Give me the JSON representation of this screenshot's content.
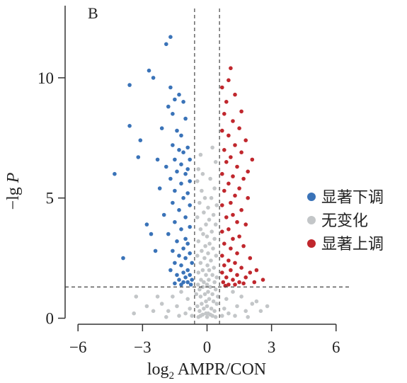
{
  "chart_data": {
    "type": "scatter",
    "panel_label": "B",
    "xlabel_prefix": "log",
    "xlabel_sub": "2",
    "xlabel_rest": " AMPR/CON",
    "ylabel_prefix": "−lg ",
    "ylabel_var": "P",
    "xlim": [
      -6.6,
      6.6
    ],
    "ylim": [
      -0.25,
      13.0
    ],
    "xticks": [
      -6,
      -3,
      0,
      3,
      6
    ],
    "xtick_labels": [
      "−6",
      "−3",
      "0",
      "3",
      "6"
    ],
    "yticks": [
      0,
      5,
      10
    ],
    "ytick_labels": [
      "0",
      "5",
      "10"
    ],
    "thresholds": {
      "fold_change_x": [
        -0.58,
        0.58
      ],
      "p_y": 1.3
    },
    "legend_position": "right",
    "series": [
      {
        "name": "显著下调",
        "color": "#3a73b8",
        "points": [
          [
            -1.7,
            11.7
          ],
          [
            -1.9,
            11.4
          ],
          [
            -2.7,
            10.3
          ],
          [
            -2.5,
            10.0
          ],
          [
            -3.6,
            9.7
          ],
          [
            -1.7,
            9.6
          ],
          [
            -1.3,
            9.3
          ],
          [
            -1.5,
            9.1
          ],
          [
            -1.1,
            9.0
          ],
          [
            -1.8,
            8.8
          ],
          [
            -1.6,
            8.5
          ],
          [
            -1.0,
            8.3
          ],
          [
            -3.6,
            8.0
          ],
          [
            -2.1,
            7.9
          ],
          [
            -1.4,
            7.8
          ],
          [
            -1.2,
            7.6
          ],
          [
            -3.1,
            7.4
          ],
          [
            -1.6,
            7.2
          ],
          [
            -0.9,
            7.1
          ],
          [
            -1.3,
            7.0
          ],
          [
            -1.1,
            6.9
          ],
          [
            -3.2,
            6.7
          ],
          [
            -2.3,
            6.6
          ],
          [
            -1.5,
            6.6
          ],
          [
            -0.8,
            6.6
          ],
          [
            -1.2,
            6.4
          ],
          [
            -1.9,
            6.3
          ],
          [
            -0.9,
            6.2
          ],
          [
            -1.4,
            6.1
          ],
          [
            -4.3,
            6.0
          ],
          [
            -1.0,
            6.0
          ],
          [
            -1.7,
            5.8
          ],
          [
            -0.8,
            5.7
          ],
          [
            -1.2,
            5.6
          ],
          [
            -2.2,
            5.4
          ],
          [
            -1.5,
            5.3
          ],
          [
            -0.9,
            5.2
          ],
          [
            -1.1,
            5.0
          ],
          [
            -1.6,
            4.8
          ],
          [
            -0.8,
            4.7
          ],
          [
            -1.3,
            4.5
          ],
          [
            -2.0,
            4.3
          ],
          [
            -1.0,
            4.2
          ],
          [
            -1.5,
            4.0
          ],
          [
            -2.8,
            3.9
          ],
          [
            -0.8,
            3.8
          ],
          [
            -1.2,
            3.7
          ],
          [
            -1.8,
            3.5
          ],
          [
            -1.0,
            3.3
          ],
          [
            -2.6,
            3.5
          ],
          [
            -1.4,
            3.2
          ],
          [
            -0.9,
            3.1
          ],
          [
            -1.1,
            2.9
          ],
          [
            -1.6,
            2.8
          ],
          [
            -0.8,
            2.7
          ],
          [
            -1.3,
            2.6
          ],
          [
            -2.4,
            2.8
          ],
          [
            -3.9,
            2.5
          ],
          [
            -1.0,
            2.5
          ],
          [
            -1.5,
            2.3
          ],
          [
            -0.7,
            2.3
          ],
          [
            -1.2,
            2.2
          ],
          [
            -0.9,
            2.0
          ],
          [
            -1.7,
            2.0
          ],
          [
            -1.1,
            1.9
          ],
          [
            -0.8,
            1.8
          ],
          [
            -1.4,
            1.8
          ],
          [
            -1.0,
            1.7
          ],
          [
            -0.7,
            1.6
          ],
          [
            -1.3,
            1.6
          ],
          [
            -0.9,
            1.5
          ],
          [
            -1.1,
            1.5
          ],
          [
            -0.75,
            1.4
          ],
          [
            -1.5,
            1.45
          ],
          [
            -1.2,
            1.4
          ]
        ]
      },
      {
        "name": "无变化",
        "color": "#c3c6c8",
        "points": [
          [
            -0.3,
            6.8
          ],
          [
            -0.4,
            6.2
          ],
          [
            -0.2,
            6.0
          ],
          [
            -0.45,
            5.7
          ],
          [
            0.25,
            7.1
          ],
          [
            0.4,
            6.5
          ],
          [
            0.15,
            5.8
          ],
          [
            0.35,
            5.4
          ],
          [
            -0.25,
            5.3
          ],
          [
            -0.1,
            5.0
          ],
          [
            0.2,
            5.0
          ],
          [
            -0.35,
            4.8
          ],
          [
            0.45,
            4.7
          ],
          [
            0.05,
            4.6
          ],
          [
            -0.15,
            4.4
          ],
          [
            0.3,
            4.3
          ],
          [
            -0.45,
            4.2
          ],
          [
            0.1,
            4.1
          ],
          [
            -0.05,
            3.9
          ],
          [
            0.4,
            3.9
          ],
          [
            -0.3,
            3.7
          ],
          [
            0.22,
            3.6
          ],
          [
            -0.18,
            3.5
          ],
          [
            0.0,
            3.4
          ],
          [
            0.35,
            3.3
          ],
          [
            -0.4,
            3.2
          ],
          [
            0.12,
            3.1
          ],
          [
            -0.08,
            3.0
          ],
          [
            0.28,
            2.9
          ],
          [
            -0.25,
            2.8
          ],
          [
            0.05,
            2.7
          ],
          [
            -0.45,
            2.6
          ],
          [
            0.42,
            2.6
          ],
          [
            -0.12,
            2.5
          ],
          [
            0.18,
            2.4
          ],
          [
            -0.3,
            2.3
          ],
          [
            0.02,
            2.2
          ],
          [
            0.32,
            2.1
          ],
          [
            -0.2,
            2.0
          ],
          [
            0.1,
            2.0
          ],
          [
            -0.4,
            1.9
          ],
          [
            0.25,
            1.8
          ],
          [
            -0.05,
            1.8
          ],
          [
            0.45,
            1.7
          ],
          [
            -0.28,
            1.6
          ],
          [
            0.08,
            1.6
          ],
          [
            -0.15,
            1.5
          ],
          [
            0.35,
            1.5
          ],
          [
            0.0,
            1.4
          ],
          [
            -0.42,
            1.4
          ],
          [
            -0.2,
            1.3
          ],
          [
            0.15,
            1.3
          ],
          [
            0.4,
            1.2
          ],
          [
            -0.35,
            1.2
          ],
          [
            0.05,
            1.1
          ],
          [
            -0.1,
            1.0
          ],
          [
            0.25,
            1.0
          ],
          [
            -0.5,
            1.0
          ],
          [
            0.5,
            0.9
          ],
          [
            -0.3,
            0.9
          ],
          [
            0.1,
            0.8
          ],
          [
            -0.05,
            0.7
          ],
          [
            0.3,
            0.7
          ],
          [
            -0.25,
            0.6
          ],
          [
            0.45,
            0.6
          ],
          [
            0.0,
            0.5
          ],
          [
            -0.45,
            0.5
          ],
          [
            0.2,
            0.4
          ],
          [
            -0.15,
            0.4
          ],
          [
            0.35,
            0.3
          ],
          [
            -0.35,
            0.3
          ],
          [
            0.05,
            0.2
          ],
          [
            -0.05,
            0.2
          ],
          [
            0.15,
            0.15
          ],
          [
            -0.2,
            0.15
          ],
          [
            0.25,
            0.1
          ],
          [
            -0.3,
            0.1
          ],
          [
            0.0,
            0.05
          ],
          [
            0.4,
            0.05
          ],
          [
            -0.4,
            0.05
          ],
          [
            -1.2,
            1.1
          ],
          [
            -1.6,
            0.9
          ],
          [
            -0.9,
            0.8
          ],
          [
            -2.1,
            0.6
          ],
          [
            -1.4,
            0.5
          ],
          [
            -0.8,
            0.4
          ],
          [
            -1.8,
            0.3
          ],
          [
            -1.0,
            0.2
          ],
          [
            -2.5,
            0.3
          ],
          [
            -1.3,
            0.1
          ],
          [
            -3.4,
            0.2
          ],
          [
            -1.9,
            0.05
          ],
          [
            -0.7,
            0.1
          ],
          [
            1.2,
            1.1
          ],
          [
            1.6,
            0.9
          ],
          [
            0.9,
            0.8
          ],
          [
            2.1,
            0.6
          ],
          [
            1.4,
            0.5
          ],
          [
            0.8,
            0.4
          ],
          [
            1.8,
            0.3
          ],
          [
            1.0,
            0.2
          ],
          [
            2.5,
            0.3
          ],
          [
            1.3,
            0.1
          ],
          [
            2.8,
            0.5
          ],
          [
            1.9,
            0.05
          ],
          [
            0.7,
            0.1
          ],
          [
            2.3,
            0.7
          ],
          [
            -2.8,
            0.5
          ],
          [
            -2.3,
            0.9
          ],
          [
            -3.3,
            0.9
          ]
        ]
      },
      {
        "name": "显著上调",
        "color": "#c0272d",
        "points": [
          [
            1.1,
            10.4
          ],
          [
            1.0,
            9.9
          ],
          [
            0.7,
            9.6
          ],
          [
            1.3,
            9.3
          ],
          [
            0.9,
            9.0
          ],
          [
            1.6,
            8.6
          ],
          [
            0.8,
            8.5
          ],
          [
            1.2,
            8.2
          ],
          [
            1.5,
            7.9
          ],
          [
            0.7,
            7.8
          ],
          [
            1.0,
            7.6
          ],
          [
            1.8,
            7.4
          ],
          [
            1.3,
            7.2
          ],
          [
            0.8,
            7.0
          ],
          [
            1.6,
            6.9
          ],
          [
            1.1,
            6.7
          ],
          [
            2.1,
            6.6
          ],
          [
            0.9,
            6.5
          ],
          [
            1.4,
            6.3
          ],
          [
            1.9,
            6.1
          ],
          [
            0.7,
            6.0
          ],
          [
            1.2,
            5.9
          ],
          [
            1.7,
            5.8
          ],
          [
            1.0,
            5.6
          ],
          [
            1.5,
            5.4
          ],
          [
            0.8,
            5.3
          ],
          [
            1.3,
            5.1
          ],
          [
            1.9,
            5.0
          ],
          [
            1.1,
            4.8
          ],
          [
            0.7,
            4.7
          ],
          [
            1.6,
            4.5
          ],
          [
            1.2,
            4.3
          ],
          [
            0.9,
            4.2
          ],
          [
            1.4,
            4.0
          ],
          [
            1.8,
            3.9
          ],
          [
            1.0,
            3.7
          ],
          [
            0.7,
            3.6
          ],
          [
            1.5,
            3.4
          ],
          [
            1.2,
            3.3
          ],
          [
            0.8,
            3.1
          ],
          [
            1.7,
            3.0
          ],
          [
            1.1,
            2.9
          ],
          [
            1.4,
            2.7
          ],
          [
            0.7,
            2.6
          ],
          [
            2.0,
            2.5
          ],
          [
            1.0,
            2.4
          ],
          [
            1.3,
            2.3
          ],
          [
            0.8,
            2.2
          ],
          [
            1.6,
            2.1
          ],
          [
            2.3,
            2.0
          ],
          [
            1.1,
            2.0
          ],
          [
            0.7,
            1.9
          ],
          [
            1.4,
            1.8
          ],
          [
            0.9,
            1.7
          ],
          [
            1.8,
            1.7
          ],
          [
            1.2,
            1.6
          ],
          [
            0.75,
            1.5
          ],
          [
            1.5,
            1.5
          ],
          [
            1.0,
            1.4
          ],
          [
            2.6,
            1.6
          ],
          [
            1.3,
            1.4
          ],
          [
            0.85,
            1.35
          ],
          [
            2.2,
            1.5
          ],
          [
            1.7,
            1.45
          ],
          [
            2.0,
            1.9
          ]
        ]
      }
    ]
  }
}
